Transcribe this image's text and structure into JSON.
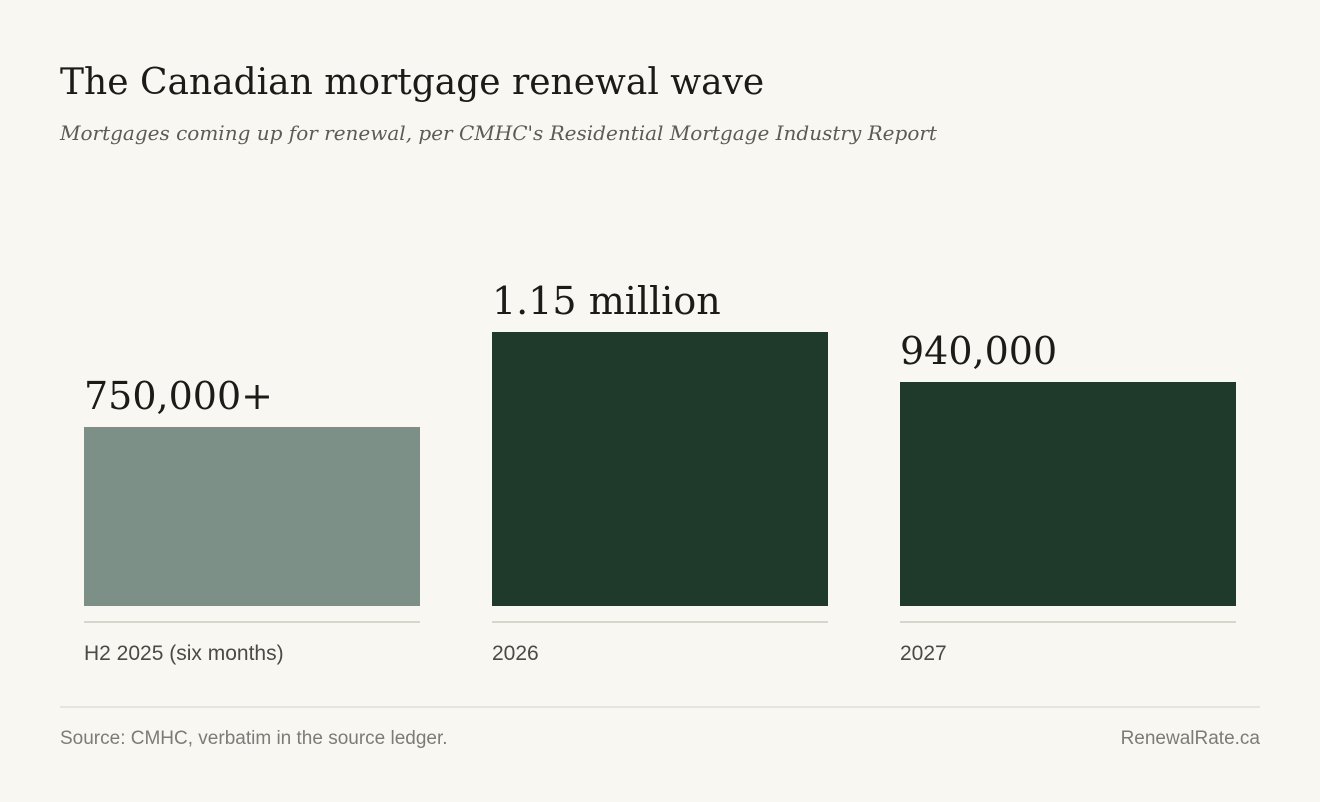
{
  "chart_data": {
    "type": "bar",
    "title": "The Canadian mortgage renewal wave",
    "subtitle": "Mortgages coming up for renewal, per CMHC's Residential Mortgage Industry Report",
    "categories": [
      "H2 2025 (six months)",
      "2026",
      "2027"
    ],
    "values": [
      750000,
      1150000,
      940000
    ],
    "value_labels": [
      "750,000+",
      "1.15 million",
      "940,000"
    ],
    "bar_colors": [
      "#7c9087",
      "#1f3a2b",
      "#1f3a2b"
    ],
    "baseline_color": "#d8d5cc",
    "ylim": [
      0,
      1150000
    ],
    "grid": false,
    "legend": "none"
  },
  "footer": {
    "source": "Source: CMHC, verbatim in the source ledger.",
    "brand": "RenewalRate.ca"
  }
}
